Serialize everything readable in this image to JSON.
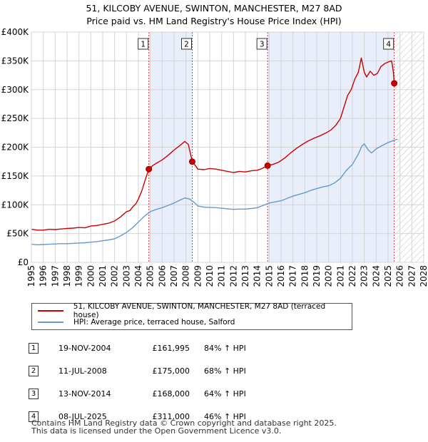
{
  "title_line1": "51, KILCOBY AVENUE, SWINTON, MANCHESTER, M27 8AD",
  "title_line2": "Price paid vs. HM Land Registry's House Price Index (HPI)",
  "chart_data": {
    "type": "line",
    "x_range": [
      1995,
      2028
    ],
    "ylim": [
      0,
      400000
    ],
    "y_ticks": [
      {
        "value": 0,
        "label": "£0"
      },
      {
        "value": 50000,
        "label": "£50K"
      },
      {
        "value": 100000,
        "label": "£100K"
      },
      {
        "value": 150000,
        "label": "£150K"
      },
      {
        "value": 200000,
        "label": "£200K"
      },
      {
        "value": 250000,
        "label": "£250K"
      },
      {
        "value": 300000,
        "label": "£300K"
      },
      {
        "value": 350000,
        "label": "£350K"
      },
      {
        "value": 400000,
        "label": "£400K"
      }
    ],
    "x_ticks": [
      "1995",
      "1996",
      "1997",
      "1998",
      "1999",
      "2000",
      "2001",
      "2002",
      "2003",
      "2004",
      "2005",
      "2006",
      "2007",
      "2008",
      "2009",
      "2010",
      "2011",
      "2012",
      "2013",
      "2014",
      "2015",
      "2016",
      "2017",
      "2018",
      "2019",
      "2020",
      "2021",
      "2022",
      "2023",
      "2024",
      "2025",
      "2026",
      "2027",
      "2028"
    ],
    "grid": true,
    "forecast_hatch_from": 2025.6,
    "series": [
      {
        "name": "51, KILCOBY AVENUE, SWINTON, MANCHESTER, M27 8AD (terraced house)",
        "color": "#cc0000",
        "points": [
          [
            1995,
            57500
          ],
          [
            1995.5,
            56000
          ],
          [
            1996,
            56000
          ],
          [
            1996.5,
            57500
          ],
          [
            1997,
            57000
          ],
          [
            1997.5,
            58000
          ],
          [
            1998,
            59000
          ],
          [
            1998.5,
            59500
          ],
          [
            1999,
            60500
          ],
          [
            1999.5,
            60000
          ],
          [
            2000,
            63000
          ],
          [
            2000.5,
            64000
          ],
          [
            2001,
            66000
          ],
          [
            2001.5,
            68000
          ],
          [
            2002,
            72000
          ],
          [
            2002.5,
            79000
          ],
          [
            2003,
            88000
          ],
          [
            2003.3,
            90000
          ],
          [
            2003.5,
            96000
          ],
          [
            2003.8,
            102000
          ],
          [
            2004,
            110000
          ],
          [
            2004.3,
            125000
          ],
          [
            2004.6,
            145000
          ],
          [
            2004.88,
            161995
          ],
          [
            2005.2,
            168000
          ],
          [
            2005.5,
            172000
          ],
          [
            2006,
            178000
          ],
          [
            2006.5,
            186000
          ],
          [
            2007,
            195000
          ],
          [
            2007.5,
            203000
          ],
          [
            2007.9,
            210000
          ],
          [
            2008.2,
            205000
          ],
          [
            2008.53,
            175000
          ],
          [
            2008.8,
            168000
          ],
          [
            2009,
            162000
          ],
          [
            2009.5,
            161000
          ],
          [
            2010,
            163000
          ],
          [
            2010.5,
            162000
          ],
          [
            2011,
            160000
          ],
          [
            2011.5,
            158000
          ],
          [
            2012,
            156000
          ],
          [
            2012.5,
            158000
          ],
          [
            2013,
            157000
          ],
          [
            2013.5,
            159000
          ],
          [
            2014,
            160000
          ],
          [
            2014.4,
            163000
          ],
          [
            2014.87,
            168000
          ],
          [
            2015.3,
            170000
          ],
          [
            2015.8,
            174000
          ],
          [
            2016.3,
            181000
          ],
          [
            2016.8,
            190000
          ],
          [
            2017.3,
            198000
          ],
          [
            2017.8,
            205000
          ],
          [
            2018.3,
            211000
          ],
          [
            2018.8,
            216000
          ],
          [
            2019.3,
            220000
          ],
          [
            2019.8,
            225000
          ],
          [
            2020.2,
            230000
          ],
          [
            2020.6,
            238000
          ],
          [
            2021,
            250000
          ],
          [
            2021.3,
            270000
          ],
          [
            2021.6,
            290000
          ],
          [
            2021.9,
            300000
          ],
          [
            2022.2,
            318000
          ],
          [
            2022.5,
            330000
          ],
          [
            2022.75,
            355000
          ],
          [
            2023,
            330000
          ],
          [
            2023.2,
            322000
          ],
          [
            2023.5,
            332000
          ],
          [
            2023.8,
            325000
          ],
          [
            2024.1,
            328000
          ],
          [
            2024.4,
            340000
          ],
          [
            2024.7,
            345000
          ],
          [
            2025,
            348000
          ],
          [
            2025.3,
            350000
          ],
          [
            2025.45,
            330000
          ],
          [
            2025.52,
            311000
          ]
        ]
      },
      {
        "name": "HPI: Average price, terraced house, Salford",
        "color": "#6699cc",
        "points": [
          [
            1995,
            31500
          ],
          [
            1995.5,
            30500
          ],
          [
            1996,
            31000
          ],
          [
            1996.5,
            31500
          ],
          [
            1997,
            32000
          ],
          [
            1997.5,
            32500
          ],
          [
            1998,
            32500
          ],
          [
            1998.5,
            33000
          ],
          [
            1999,
            33500
          ],
          [
            1999.5,
            34000
          ],
          [
            2000,
            35000
          ],
          [
            2000.5,
            36000
          ],
          [
            2001,
            37500
          ],
          [
            2001.5,
            39000
          ],
          [
            2002,
            41000
          ],
          [
            2002.5,
            46000
          ],
          [
            2003,
            52000
          ],
          [
            2003.5,
            60000
          ],
          [
            2004,
            70000
          ],
          [
            2004.5,
            80000
          ],
          [
            2005,
            88000
          ],
          [
            2005.5,
            92000
          ],
          [
            2006,
            95000
          ],
          [
            2006.5,
            99000
          ],
          [
            2007,
            103000
          ],
          [
            2007.5,
            108000
          ],
          [
            2007.9,
            112000
          ],
          [
            2008.3,
            110000
          ],
          [
            2008.7,
            104000
          ],
          [
            2009,
            98000
          ],
          [
            2009.5,
            96000
          ],
          [
            2010,
            95500
          ],
          [
            2010.5,
            95000
          ],
          [
            2011,
            94000
          ],
          [
            2011.5,
            93000
          ],
          [
            2012,
            92000
          ],
          [
            2012.5,
            92500
          ],
          [
            2013,
            92500
          ],
          [
            2013.5,
            93500
          ],
          [
            2014,
            95000
          ],
          [
            2014.5,
            99000
          ],
          [
            2015,
            103000
          ],
          [
            2015.5,
            105000
          ],
          [
            2016,
            107000
          ],
          [
            2016.5,
            111000
          ],
          [
            2017,
            115000
          ],
          [
            2017.5,
            118000
          ],
          [
            2018,
            121000
          ],
          [
            2018.5,
            125000
          ],
          [
            2019,
            128000
          ],
          [
            2019.5,
            131000
          ],
          [
            2020,
            133000
          ],
          [
            2020.5,
            138000
          ],
          [
            2021,
            146000
          ],
          [
            2021.5,
            160000
          ],
          [
            2022,
            170000
          ],
          [
            2022.5,
            188000
          ],
          [
            2022.8,
            202000
          ],
          [
            2023,
            206000
          ],
          [
            2023.3,
            196000
          ],
          [
            2023.6,
            190000
          ],
          [
            2024,
            197000
          ],
          [
            2024.5,
            203000
          ],
          [
            2025,
            208000
          ],
          [
            2025.5,
            212000
          ],
          [
            2025.8,
            214000
          ]
        ]
      }
    ],
    "sales": [
      {
        "label": "1",
        "year": 2004.88,
        "price": 161995,
        "date": "19-NOV-2004",
        "price_label": "£161,995",
        "hpi_label": "84% ↑ HPI"
      },
      {
        "label": "2",
        "year": 2008.53,
        "price": 175000,
        "date": "11-JUL-2008",
        "price_label": "£175,000",
        "hpi_label": "68% ↑ HPI"
      },
      {
        "label": "3",
        "year": 2014.87,
        "price": 168000,
        "date": "13-NOV-2014",
        "price_label": "£168,000",
        "hpi_label": "64% ↑ HPI"
      },
      {
        "label": "4",
        "year": 2025.52,
        "price": 311000,
        "date": "08-JUL-2025",
        "price_label": "£311,000",
        "hpi_label": "46% ↑ HPI"
      }
    ],
    "shaded_ranges": [
      [
        2004.88,
        2008.53
      ],
      [
        2014.87,
        2025.52
      ]
    ]
  },
  "legend": {
    "property_label": "51, KILCOBY AVENUE, SWINTON, MANCHESTER, M27 8AD (terraced house)",
    "hpi_label": "HPI: Average price, terraced house, Salford",
    "property_color": "#cc0000",
    "hpi_color": "#6699cc"
  },
  "footer": {
    "line1": "Contains HM Land Registry data © Crown copyright and database right 2025.",
    "line2": "This data is licensed under the Open Government Licence v3.0."
  }
}
